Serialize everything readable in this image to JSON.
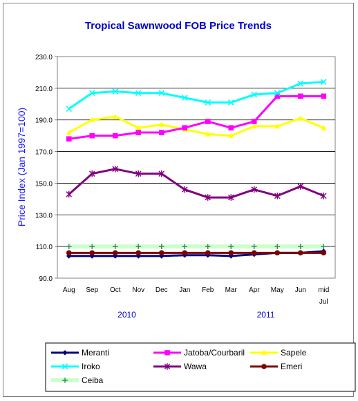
{
  "chart_data": {
    "type": "line",
    "title": "Tropical Sawnwood FOB Price Trends",
    "ylabel": "Price Index  (Jan 1997=100)",
    "xlabel": "",
    "ylim": [
      90,
      230
    ],
    "yticks": [
      "90.0",
      "110.0",
      "130.0",
      "150.0",
      "170.0",
      "190.0",
      "210.0",
      "230.0"
    ],
    "categories": [
      "Aug",
      "Sep",
      "Oct",
      "Nov",
      "Dec",
      "Jan",
      "Feb",
      "Mar",
      "Apr",
      "May",
      "Jun",
      "mid"
    ],
    "category_sublabels": {
      "mid": "Jul"
    },
    "year_labels": [
      "2010",
      "2011"
    ],
    "grid": true,
    "legend_position": "bottom",
    "series": [
      {
        "name": "Meranti",
        "color": "#000080",
        "marker": "diamond",
        "values": [
          104,
          104,
          104,
          104,
          104,
          104.5,
          104.5,
          104,
          105,
          106,
          106,
          107
        ]
      },
      {
        "name": "Jatoba/Courbaril",
        "color": "#ff00ff",
        "marker": "square",
        "values": [
          178,
          180,
          180,
          182,
          182,
          185,
          189,
          185,
          189,
          205,
          205,
          205
        ]
      },
      {
        "name": "Sapele",
        "color": "#ffff00",
        "marker": "triangle",
        "values": [
          182,
          190,
          192,
          185,
          187,
          184,
          181,
          180,
          186,
          186,
          191,
          185
        ]
      },
      {
        "name": "Iroko",
        "color": "#00ffff",
        "marker": "x",
        "values": [
          197,
          207,
          208,
          207,
          207,
          204,
          201,
          201,
          206,
          207,
          213,
          214
        ]
      },
      {
        "name": "Wawa",
        "color": "#800080",
        "marker": "star",
        "values": [
          143,
          156,
          159,
          156,
          156,
          146,
          141,
          141,
          146,
          142,
          148,
          142
        ]
      },
      {
        "name": "Emeri",
        "color": "#800000",
        "marker": "circle",
        "values": [
          106,
          106,
          106,
          106,
          106,
          106,
          106,
          106,
          106,
          106,
          106,
          106
        ]
      },
      {
        "name": "Ceiba",
        "color": "#ccffcc",
        "marker": "plus",
        "values": [
          110,
          110,
          110,
          110,
          110,
          110,
          110,
          110,
          110,
          110,
          110,
          110
        ]
      }
    ]
  }
}
